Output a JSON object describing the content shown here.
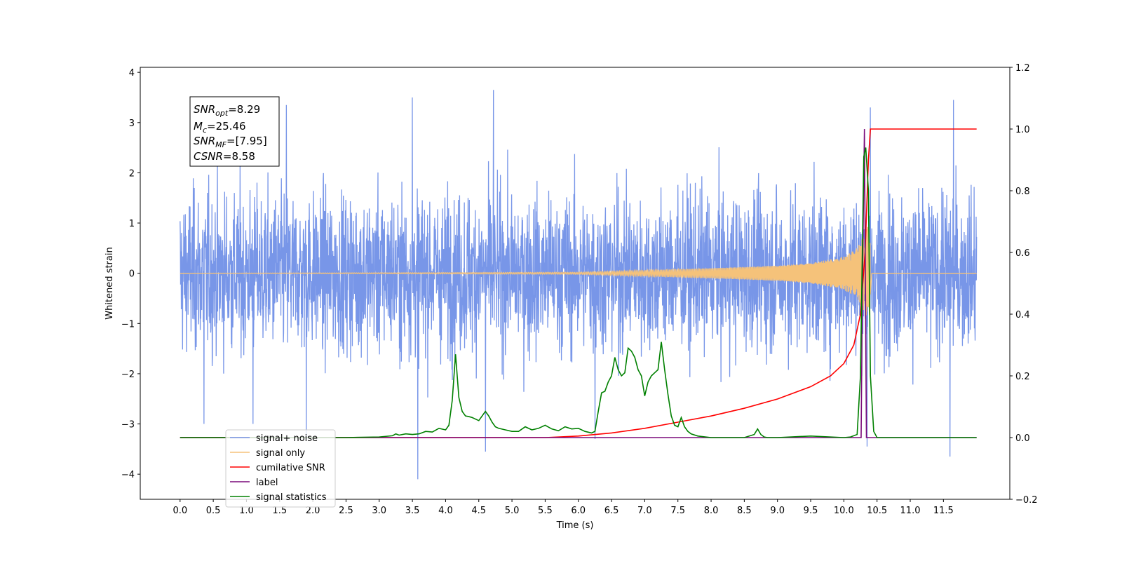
{
  "chart_data": {
    "type": "line",
    "xlabel": "Time (s)",
    "ylabel": "Whitened strain",
    "xlim": [
      -0.6,
      12.5
    ],
    "ylim": [
      -4.5,
      4.1
    ],
    "y2lim": [
      -0.2,
      1.2
    ],
    "x_ticks": [
      "0.0",
      "0.5",
      "1.0",
      "1.5",
      "2.0",
      "2.5",
      "3.0",
      "3.5",
      "4.0",
      "4.5",
      "5.0",
      "5.5",
      "6.0",
      "6.5",
      "7.0",
      "7.5",
      "8.0",
      "8.5",
      "9.0",
      "9.5",
      "10.0",
      "10.5",
      "11.0",
      "11.5"
    ],
    "y_ticks": [
      "4",
      "3",
      "2",
      "1",
      "0",
      "−1",
      "−2",
      "−3",
      "−4"
    ],
    "y2_ticks": [
      "1.2",
      "1.0",
      "0.8",
      "0.6",
      "0.4",
      "0.2",
      "0.0",
      "−0.2"
    ],
    "stats_box": {
      "lines": [
        {
          "var": "SNR",
          "sub": "opt",
          "value": "=8.29"
        },
        {
          "var": "M",
          "sub": "c",
          "value": "=25.46"
        },
        {
          "var": "SNR",
          "sub": "MF",
          "value": "=[7.95]"
        },
        {
          "var": "CSNR",
          "sub": "",
          "value": "=8.58"
        }
      ]
    },
    "legend": {
      "placement": "lower-left",
      "entries": [
        {
          "label": "signal+ noise",
          "color": "#7896e8"
        },
        {
          "label": "signal only",
          "color": "#f5c27a"
        },
        {
          "label": "cumilative SNR",
          "color": "#ff0000"
        },
        {
          "label": "label",
          "color": "#7a0a7a"
        },
        {
          "label": "signal statistics",
          "color": "#008000"
        }
      ]
    },
    "series": [
      {
        "name": "signal+ noise",
        "axis": "left",
        "color": "#7896e8",
        "description": "whitened noise, t 0.0–12.0 s, typical amplitude ±1.5, peaks to ±3.6",
        "t_start": 0.0,
        "t_end": 12.0,
        "extremes": [
          [
            0.36,
            -3.0
          ],
          [
            1.1,
            -3.0
          ],
          [
            1.9,
            -3.3
          ],
          [
            3.58,
            -4.1
          ],
          [
            4.6,
            -3.55
          ],
          [
            4.72,
            3.65
          ],
          [
            3.5,
            3.5
          ],
          [
            10.35,
            -3.45
          ],
          [
            11.6,
            -3.65
          ],
          [
            11.65,
            3.45
          ],
          [
            10.4,
            3.3
          ],
          [
            6.25,
            -3.3
          ],
          [
            1.6,
            3.35
          ]
        ]
      },
      {
        "name": "signal only",
        "axis": "left",
        "color": "#f5c27a",
        "description": "chirp, envelope [t, amplitude]",
        "envelope": [
          [
            0.0,
            0.0
          ],
          [
            6.0,
            0.02
          ],
          [
            7.0,
            0.06
          ],
          [
            8.0,
            0.1
          ],
          [
            9.0,
            0.15
          ],
          [
            9.5,
            0.2
          ],
          [
            10.0,
            0.33
          ],
          [
            10.2,
            0.5
          ],
          [
            10.3,
            0.75
          ],
          [
            10.38,
            1.0
          ],
          [
            10.42,
            0.0
          ],
          [
            12.0,
            0.0
          ]
        ]
      },
      {
        "name": "cumilative SNR",
        "axis": "right",
        "color": "#ff0000",
        "x": [
          0.0,
          5.5,
          6.0,
          6.5,
          7.0,
          7.5,
          8.0,
          8.5,
          9.0,
          9.5,
          9.8,
          10.0,
          10.15,
          10.25,
          10.32,
          10.37,
          10.4,
          12.0
        ],
        "y": [
          0.0,
          0.0,
          0.005,
          0.015,
          0.03,
          0.05,
          0.07,
          0.095,
          0.125,
          0.165,
          0.2,
          0.24,
          0.3,
          0.4,
          0.6,
          0.9,
          1.0,
          1.0
        ]
      },
      {
        "name": "label",
        "axis": "right",
        "color": "#7a0a7a",
        "x": [
          0.0,
          10.26,
          10.28,
          10.31,
          10.34,
          12.0
        ],
        "y": [
          0.0,
          0.0,
          0.5,
          1.0,
          0.0,
          0.0
        ]
      },
      {
        "name": "signal statistics",
        "axis": "right",
        "color": "#008000",
        "x": [
          0.0,
          2.5,
          3.0,
          3.2,
          3.25,
          3.3,
          3.4,
          3.5,
          3.6,
          3.7,
          3.8,
          3.9,
          4.0,
          4.05,
          4.1,
          4.15,
          4.2,
          4.25,
          4.3,
          4.35,
          4.4,
          4.5,
          4.6,
          4.65,
          4.7,
          4.75,
          4.8,
          4.9,
          5.0,
          5.1,
          5.2,
          5.3,
          5.4,
          5.5,
          5.6,
          5.7,
          5.8,
          5.9,
          6.0,
          6.1,
          6.2,
          6.25,
          6.3,
          6.35,
          6.4,
          6.45,
          6.5,
          6.55,
          6.6,
          6.65,
          6.7,
          6.75,
          6.8,
          6.85,
          6.9,
          6.95,
          7.0,
          7.05,
          7.1,
          7.15,
          7.2,
          7.25,
          7.3,
          7.35,
          7.4,
          7.45,
          7.5,
          7.55,
          7.6,
          7.65,
          7.7,
          7.8,
          8.0,
          8.5,
          8.65,
          8.7,
          8.75,
          8.8,
          8.85,
          9.0,
          9.5,
          10.0,
          10.1,
          10.2,
          10.25,
          10.3,
          10.33,
          10.37,
          10.4,
          10.45,
          10.5,
          12.0
        ],
        "y": [
          0.0,
          0.0,
          0.002,
          0.006,
          0.012,
          0.008,
          0.012,
          0.01,
          0.012,
          0.02,
          0.018,
          0.03,
          0.025,
          0.04,
          0.12,
          0.27,
          0.13,
          0.085,
          0.07,
          0.068,
          0.065,
          0.055,
          0.085,
          0.07,
          0.05,
          0.035,
          0.03,
          0.025,
          0.02,
          0.02,
          0.035,
          0.025,
          0.03,
          0.04,
          0.028,
          0.022,
          0.035,
          0.028,
          0.03,
          0.02,
          0.015,
          0.02,
          0.085,
          0.145,
          0.15,
          0.18,
          0.2,
          0.26,
          0.22,
          0.2,
          0.21,
          0.29,
          0.28,
          0.26,
          0.22,
          0.2,
          0.135,
          0.18,
          0.2,
          0.21,
          0.22,
          0.31,
          0.22,
          0.14,
          0.07,
          0.04,
          0.035,
          0.065,
          0.035,
          0.02,
          0.012,
          0.005,
          0.0,
          0.0,
          0.01,
          0.028,
          0.01,
          0.002,
          0.0,
          0.0,
          0.005,
          0.0,
          0.002,
          0.01,
          0.2,
          0.91,
          0.94,
          0.8,
          0.2,
          0.02,
          0.0,
          0.0
        ]
      }
    ]
  }
}
